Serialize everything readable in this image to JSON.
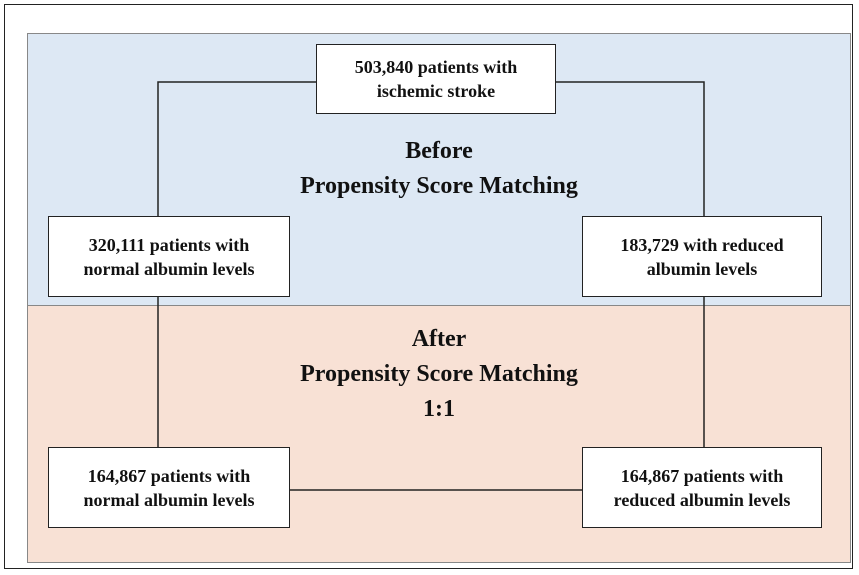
{
  "sections": [
    {
      "lines": [
        "Before",
        "Propensity Score Matching"
      ]
    },
    {
      "lines": [
        "After",
        "Propensity Score Matching",
        "1:1"
      ]
    }
  ],
  "nodes": [
    {
      "lines": [
        "503,840 patients with",
        "ischemic stroke"
      ]
    },
    {
      "lines": [
        "320,111 patients with",
        "normal albumin levels"
      ]
    },
    {
      "lines": [
        "183,729 with reduced",
        "albumin levels"
      ]
    },
    {
      "lines": [
        "164,867 patients with",
        "normal albumin levels"
      ]
    },
    {
      "lines": [
        "164,867 patients with",
        "reduced albumin levels"
      ]
    }
  ]
}
